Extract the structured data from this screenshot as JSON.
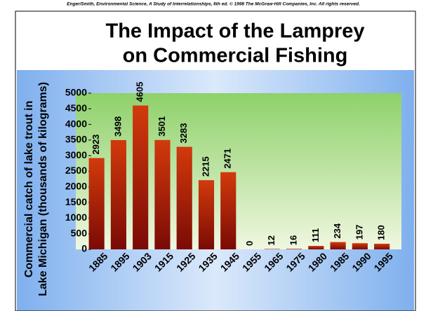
{
  "copyright": "Enger/Smith, Environmental Science, A Study of Interrelationships, 6th ed. © 1998 The McGraw-Hill Companies, Inc. All rights reserved.",
  "chart_data": {
    "type": "bar",
    "title": [
      "The Impact of the Lamprey",
      "on Commercial Fishing"
    ],
    "y_label": [
      "Commercial catch of lake trout in",
      "Lake Michigan (thousands of kilograms)"
    ],
    "categories": [
      "1885",
      "1895",
      "1903",
      "1915",
      "1925",
      "1935",
      "1945",
      "1955",
      "1965",
      "1975",
      "1980",
      "1985",
      "1990",
      "1995"
    ],
    "values": [
      2923,
      3498,
      4605,
      3501,
      3283,
      2215,
      2471,
      0,
      12,
      16,
      111,
      234,
      197,
      180
    ],
    "color": "#d23a0c",
    "ylim": [
      0,
      5000
    ],
    "yticks": [
      0,
      500,
      1000,
      1500,
      2000,
      2500,
      3000,
      3500,
      4000,
      4500,
      5000
    ]
  }
}
